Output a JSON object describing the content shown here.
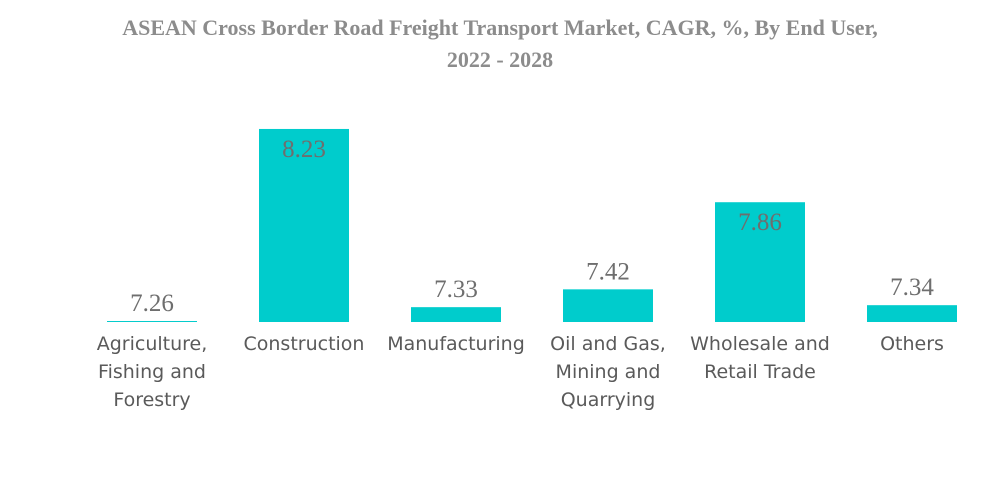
{
  "chart_data": {
    "type": "bar",
    "title": "ASEAN Cross Border Road Freight Transport Market, CAGR, %, By End User,",
    "subtitle": "2022 - 2028",
    "xlabel": "",
    "ylabel": "",
    "categories": [
      "Agriculture, Fishing and Forestry",
      "Construction",
      "Manufacturing",
      "Oil and Gas, Mining and Quarrying",
      "Wholesale and Retail Trade",
      "Others"
    ],
    "category_lines": [
      [
        "Agriculture,",
        "Fishing and",
        "Forestry"
      ],
      [
        "Construction"
      ],
      [
        "Manufacturing"
      ],
      [
        "Oil and Gas,",
        "Mining and",
        "Quarrying"
      ],
      [
        "Wholesale and",
        "Retail Trade"
      ],
      [
        "Others"
      ]
    ],
    "values": [
      7.26,
      8.23,
      7.33,
      7.42,
      7.86,
      7.34
    ],
    "value_labels": [
      "7.26",
      "8.23",
      "7.33",
      "7.42",
      "7.86",
      "7.34"
    ],
    "label_position": [
      "above",
      "inside",
      "above",
      "above",
      "inside",
      "above"
    ],
    "bar_color": "#00cccc",
    "grid": false,
    "legend": "none"
  }
}
